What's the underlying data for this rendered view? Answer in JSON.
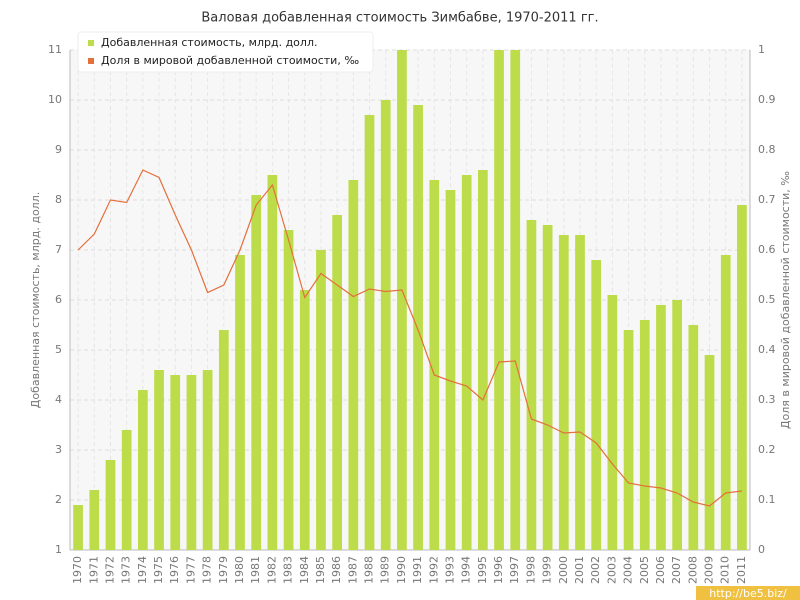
{
  "chart_data": {
    "type": "bar_line",
    "title": "Валовая добавленная стоимость Зимбабве, 1970-2011 гг.",
    "y_label": "Добавленная стоимость, млрд. долл.",
    "y2_label": "Доля в мировой добавленной стоимости, ‰",
    "watermark": "http://be5.biz/",
    "categories": [
      "1970",
      "1971",
      "1972",
      "1973",
      "1974",
      "1975",
      "1976",
      "1977",
      "1978",
      "1979",
      "1980",
      "1981",
      "1982",
      "1983",
      "1984",
      "1985",
      "1986",
      "1987",
      "1988",
      "1989",
      "1990",
      "1991",
      "1992",
      "1993",
      "1994",
      "1995",
      "1996",
      "1997",
      "1998",
      "1999",
      "2000",
      "2001",
      "2002",
      "2003",
      "2004",
      "2005",
      "2006",
      "2007",
      "2008",
      "2009",
      "2010",
      "2011"
    ],
    "series": [
      {
        "name": "Добавленная стоимость, млрд. долл.",
        "color": "#bcdc4a",
        "type": "bar",
        "values": [
          1.9,
          2.2,
          2.8,
          3.4,
          4.2,
          4.6,
          4.5,
          4.5,
          4.6,
          5.4,
          6.9,
          8.1,
          8.5,
          7.4,
          6.2,
          7.0,
          7.7,
          8.4,
          9.7,
          10.0,
          11,
          9.9,
          8.4,
          8.2,
          8.5,
          8.6,
          11,
          11,
          7.6,
          7.5,
          7.3,
          7.3,
          6.8,
          6.1,
          5.4,
          5.6,
          5.9,
          6.0,
          5.5,
          4.9,
          6.9,
          7.9
        ]
      },
      {
        "name": "Доля в мировой добавленной стоимости, ‰",
        "color": "#e4703c",
        "type": "line",
        "axis": "y2",
        "values": [
          0.6,
          0.632,
          0.7,
          0.695,
          0.76,
          0.745,
          0.67,
          0.6,
          0.515,
          0.53,
          0.6,
          0.69,
          0.73,
          0.62,
          0.505,
          0.553,
          0.53,
          0.507,
          0.522,
          0.517,
          0.52,
          0.44,
          0.35,
          0.338,
          0.328,
          0.3,
          0.376,
          0.378,
          0.262,
          0.25,
          0.234,
          0.236,
          0.214,
          0.172,
          0.134,
          0.128,
          0.124,
          0.114,
          0.096,
          0.088,
          0.114,
          0.118
        ]
      }
    ],
    "ylim": [
      1,
      11
    ],
    "yticks": [
      1,
      2,
      3,
      4,
      5,
      6,
      7,
      8,
      9,
      10,
      11
    ],
    "y2lim": [
      0,
      1
    ],
    "y2ticks": [
      0,
      0.1,
      0.2,
      0.3,
      0.4,
      0.5,
      0.6,
      0.7,
      0.8,
      0.9,
      1
    ],
    "grid": true,
    "legend_position": "top-left"
  }
}
